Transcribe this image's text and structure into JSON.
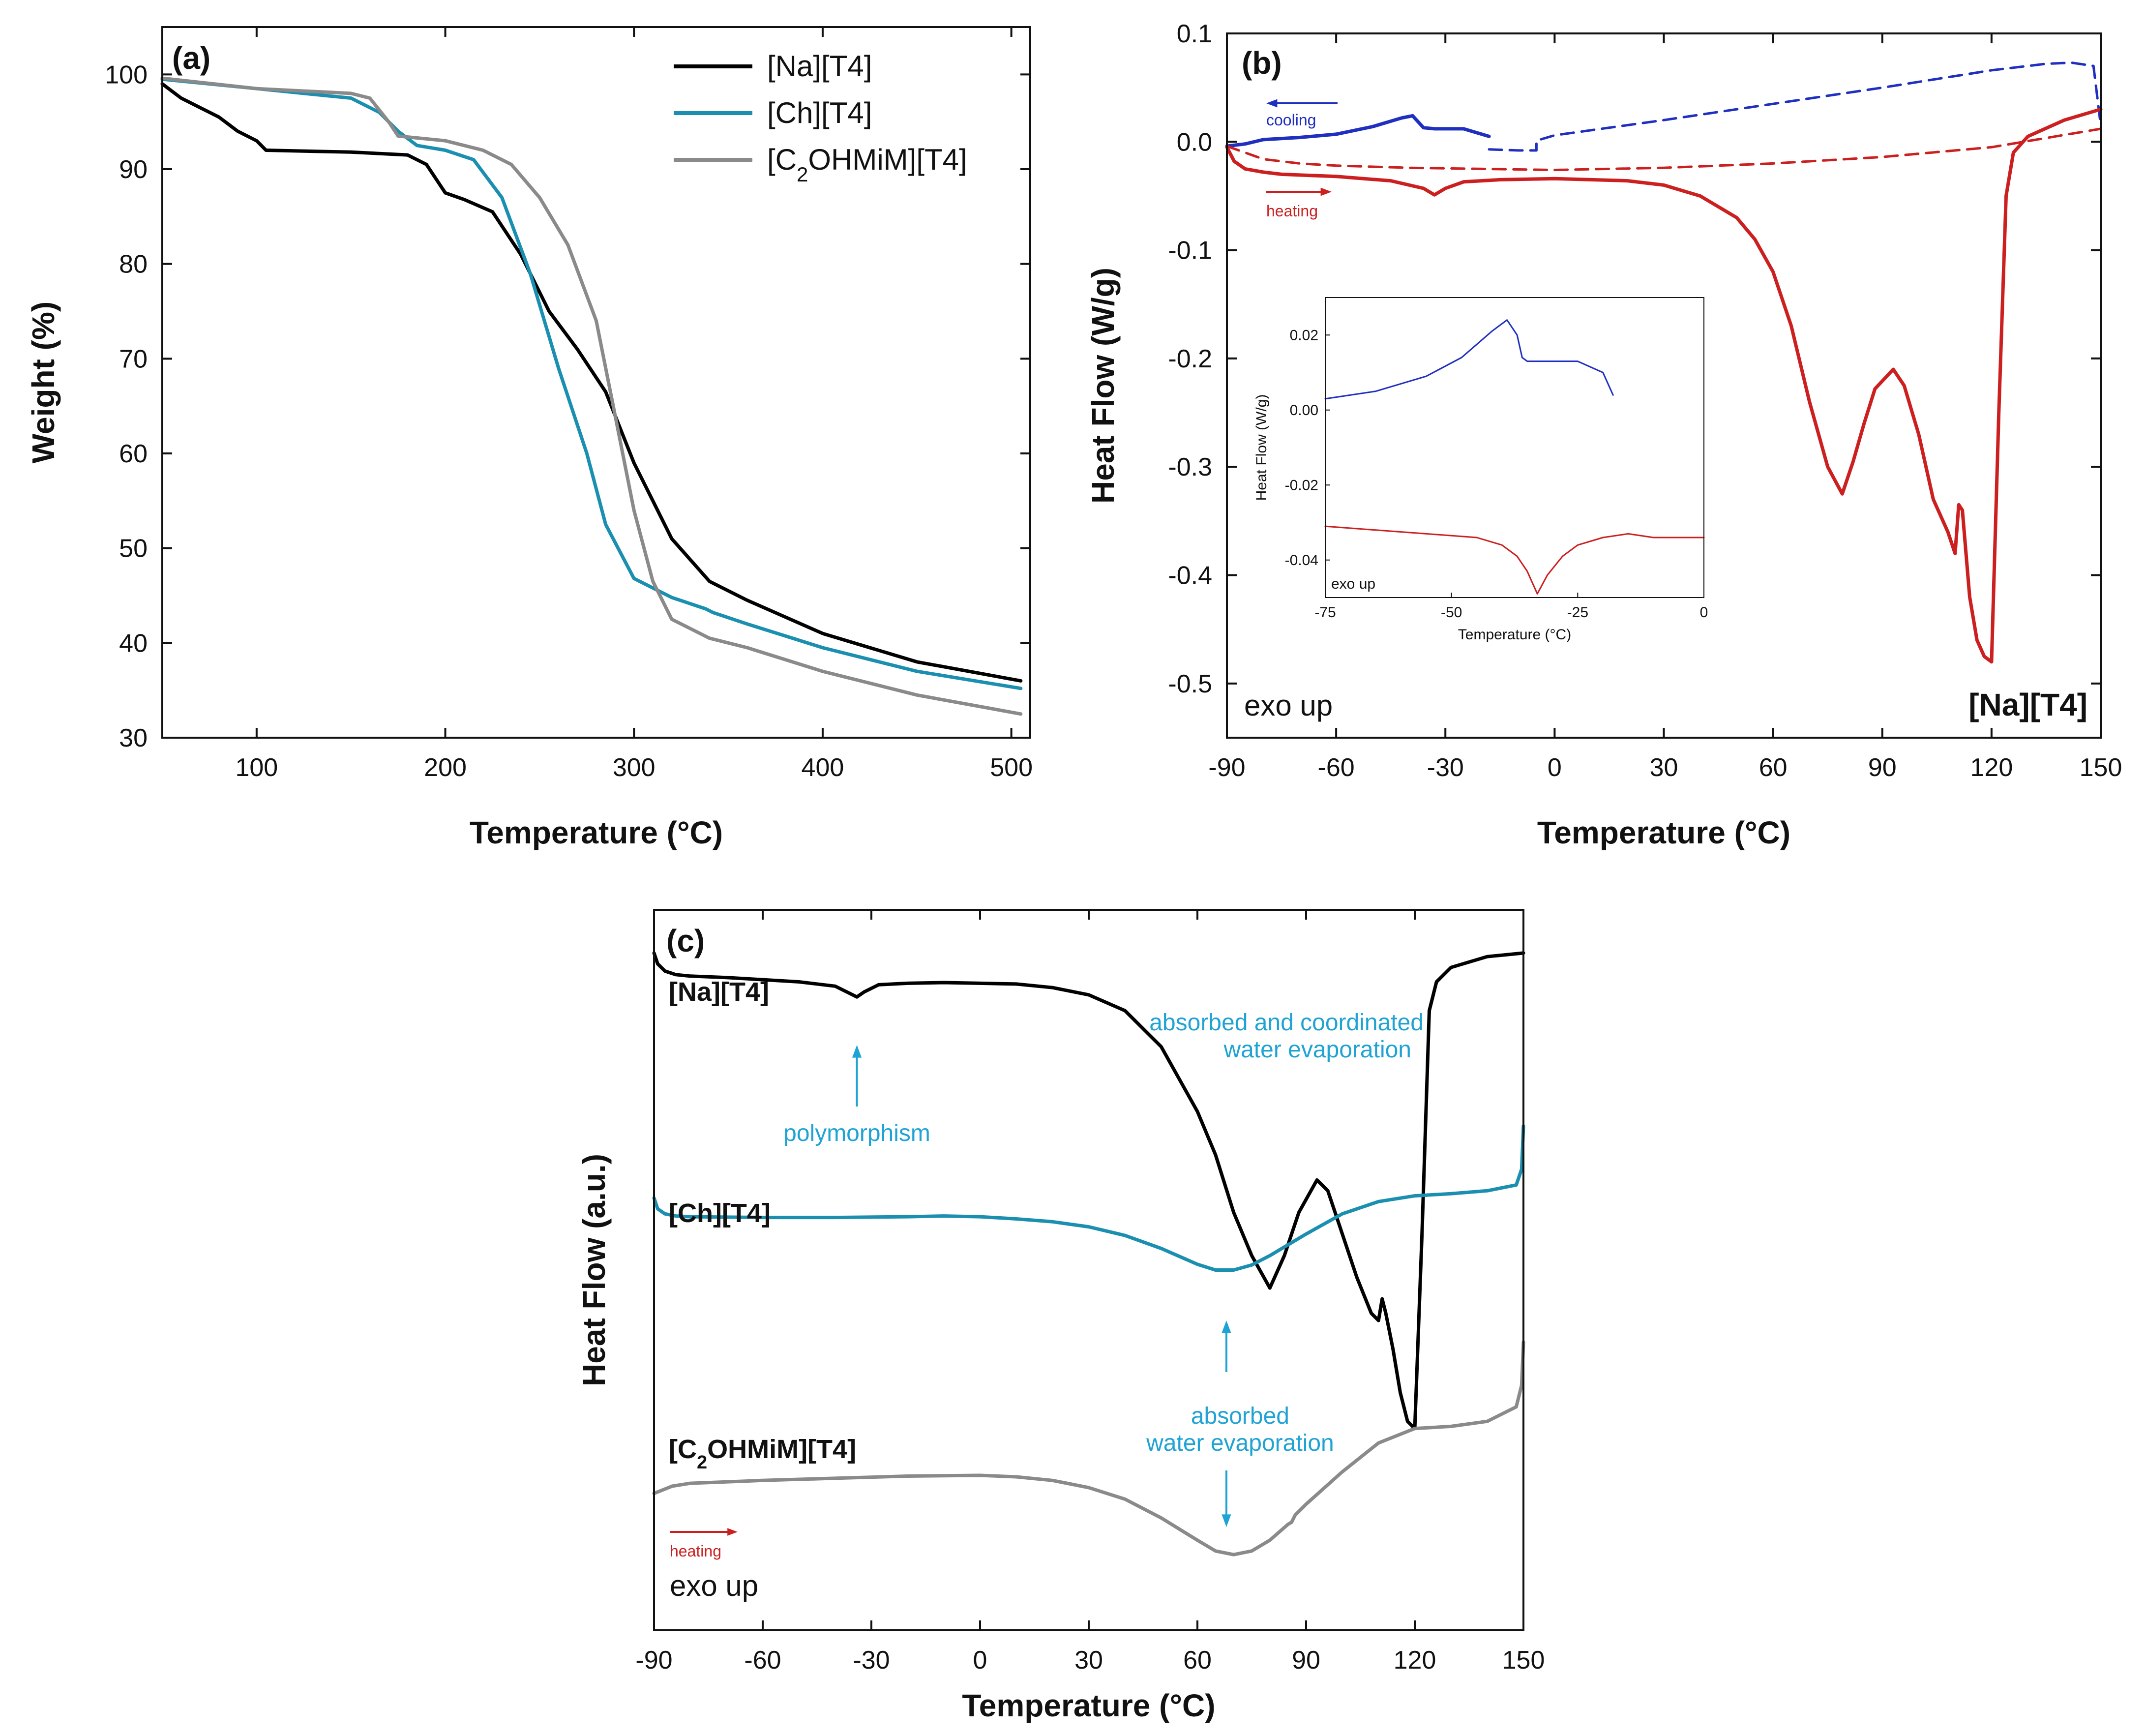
{
  "chart_data": [
    {
      "id": "a",
      "type": "line",
      "panel_label": "(a)",
      "xlabel": "Temperature (°C)",
      "ylabel": "Weight (%)",
      "xlim": [
        50,
        510
      ],
      "ylim": [
        30,
        105
      ],
      "xticks": [
        100,
        200,
        300,
        400,
        500
      ],
      "yticks": [
        30,
        40,
        50,
        60,
        70,
        80,
        90,
        100
      ],
      "legend_position": "top-right",
      "series": [
        {
          "name": "[Na][T4]",
          "legend": "[Na][T4]",
          "color": "#000000",
          "x": [
            50,
            60,
            70,
            80,
            90,
            100,
            105,
            150,
            180,
            190,
            200,
            210,
            225,
            240,
            255,
            270,
            285,
            300,
            320,
            340,
            360,
            400,
            450,
            505
          ],
          "y": [
            99,
            97.5,
            96.5,
            95.5,
            94,
            93,
            92,
            91.8,
            91.5,
            90.5,
            87.5,
            86.8,
            85.5,
            81,
            75,
            71,
            66.5,
            59,
            51,
            46.5,
            44.5,
            41,
            38,
            36
          ]
        },
        {
          "name": "[Ch][T4]",
          "legend": "[Ch][T4]",
          "color": "#1a8fb0",
          "x": [
            50,
            100,
            150,
            165,
            175,
            185,
            200,
            215,
            230,
            245,
            260,
            275,
            285,
            300,
            320,
            338,
            342,
            360,
            400,
            450,
            505
          ],
          "y": [
            99.5,
            98.5,
            97.5,
            96,
            94,
            92.5,
            92,
            91,
            87,
            79,
            69,
            60,
            52.5,
            46.8,
            44.8,
            43.6,
            43.2,
            42,
            39.5,
            37,
            35.2
          ]
        },
        {
          "name": "[C2OHMiM][T4]",
          "legend_main": "[C",
          "legend_sub": "2",
          "legend_rest": "OHMiM][T4]",
          "color": "#8a8a8a",
          "x": [
            50,
            100,
            150,
            160,
            170,
            175,
            200,
            220,
            235,
            250,
            265,
            280,
            290,
            300,
            310,
            320,
            340,
            360,
            400,
            450,
            505
          ],
          "y": [
            99.6,
            98.5,
            98,
            97.5,
            95,
            93.5,
            93,
            92,
            90.5,
            87,
            82,
            74,
            64,
            54,
            46.5,
            42.5,
            40.5,
            39.5,
            37,
            34.5,
            32.5
          ]
        }
      ]
    },
    {
      "id": "b",
      "type": "line",
      "panel_label": "(b)",
      "xlabel": "Temperature (°C)",
      "ylabel": "Heat Flow (W/g)",
      "xlim": [
        -90,
        150
      ],
      "ylim": [
        -0.55,
        0.1
      ],
      "xticks": [
        -90,
        -60,
        -30,
        0,
        30,
        60,
        90,
        120,
        150
      ],
      "yticks": [
        0.1,
        0.0,
        -0.1,
        -0.2,
        -0.3,
        -0.4,
        -0.5
      ],
      "annotations": {
        "cooling": "cooling",
        "heating": "heating",
        "exo_up": "exo up",
        "sample": "[Na][T4]"
      },
      "series": [
        {
          "id": "cooling_solid",
          "color": "#1f2fbf",
          "dash": false,
          "x": [
            -90,
            -85,
            -80,
            -70,
            -60,
            -50,
            -42,
            -39,
            -36,
            -33,
            -25,
            -18
          ],
          "y": [
            -0.004,
            -0.002,
            0.002,
            0.004,
            0.007,
            0.014,
            0.022,
            0.024,
            0.013,
            0.012,
            0.012,
            0.005
          ]
        },
        {
          "id": "cooling_dashed",
          "color": "#1f2fbf",
          "dash": true,
          "x": [
            -18,
            -10,
            -5,
            -5,
            0,
            30,
            60,
            90,
            120,
            135,
            142,
            148,
            150
          ],
          "y": [
            -0.007,
            -0.008,
            -0.008,
            0.001,
            0.006,
            0.02,
            0.035,
            0.05,
            0.066,
            0.072,
            0.073,
            0.07,
            0.015
          ]
        },
        {
          "id": "heating_dashed",
          "color": "#cc1f1f",
          "dash": true,
          "x": [
            -90,
            -85,
            -80,
            -70,
            -60,
            -40,
            -20,
            0,
            30,
            60,
            90,
            120,
            150
          ],
          "y": [
            -0.004,
            -0.01,
            -0.016,
            -0.02,
            -0.022,
            -0.024,
            -0.025,
            -0.026,
            -0.024,
            -0.02,
            -0.014,
            -0.005,
            0.012
          ]
        },
        {
          "id": "heating_solid",
          "color": "#cc1f1f",
          "dash": false,
          "x": [
            -90,
            -88,
            -85,
            -80,
            -75,
            -60,
            -45,
            -36,
            -33,
            -30,
            -25,
            -15,
            0,
            10,
            20,
            30,
            40,
            50,
            55,
            60,
            65,
            70,
            75,
            79,
            82,
            85,
            88,
            93,
            96,
            100,
            104,
            108,
            110,
            111,
            112,
            114,
            116,
            118,
            120,
            122,
            124,
            126,
            130,
            140,
            150
          ],
          "y": [
            -0.005,
            -0.018,
            -0.025,
            -0.028,
            -0.03,
            -0.032,
            -0.036,
            -0.043,
            -0.049,
            -0.043,
            -0.037,
            -0.035,
            -0.034,
            -0.035,
            -0.036,
            -0.04,
            -0.05,
            -0.07,
            -0.09,
            -0.12,
            -0.17,
            -0.24,
            -0.3,
            -0.325,
            -0.295,
            -0.26,
            -0.228,
            -0.21,
            -0.225,
            -0.27,
            -0.33,
            -0.36,
            -0.38,
            -0.335,
            -0.34,
            -0.42,
            -0.46,
            -0.475,
            -0.48,
            -0.25,
            -0.05,
            -0.01,
            0.005,
            0.02,
            0.03
          ]
        }
      ],
      "inset": {
        "xlabel": "Temperature (°C)",
        "ylabel": "Heat Flow (W/g)",
        "xlim": [
          -75,
          0
        ],
        "ylim": [
          -0.05,
          0.03
        ],
        "xticks": [
          -75,
          -50,
          -25,
          0
        ],
        "yticks": [
          0.02,
          0.0,
          -0.02,
          -0.04
        ],
        "annotation": "exo up",
        "series": [
          {
            "id": "inset_cooling",
            "color": "#1f2fbf",
            "x": [
              -75,
              -65,
              -55,
              -48,
              -42,
              -39,
              -37,
              -36,
              -35,
              -30,
              -25,
              -20,
              -18
            ],
            "y": [
              0.003,
              0.005,
              0.009,
              0.014,
              0.021,
              0.024,
              0.02,
              0.014,
              0.013,
              0.013,
              0.013,
              0.01,
              0.004
            ]
          },
          {
            "id": "inset_heating",
            "color": "#cc1f1f",
            "x": [
              -75,
              -65,
              -55,
              -45,
              -40,
              -37,
              -35,
              -34,
              -33,
              -31,
              -28,
              -25,
              -20,
              -15,
              -10,
              0
            ],
            "y": [
              -0.031,
              -0.032,
              -0.033,
              -0.034,
              -0.036,
              -0.039,
              -0.043,
              -0.046,
              -0.049,
              -0.044,
              -0.039,
              -0.036,
              -0.034,
              -0.033,
              -0.034,
              -0.034
            ]
          }
        ]
      }
    },
    {
      "id": "c",
      "type": "line",
      "panel_label": "(c)",
      "xlabel": "Temperature (°C)",
      "ylabel": "Heat Flow (a.u.)",
      "xlim": [
        -90,
        150
      ],
      "ylim": [
        0,
        1
      ],
      "xticks": [
        -90,
        -60,
        -30,
        0,
        30,
        60,
        90,
        120,
        150
      ],
      "annotations": {
        "polymorphism": "polymorphism",
        "absorbed_coordinated_line1": "absorbed and coordinated",
        "absorbed_coordinated_line2": "water evaporation",
        "absorbed_line1": "absorbed",
        "absorbed_line2": "water evaporation",
        "heating": "heating",
        "exo_up": "exo up",
        "highlight_color": "#1fa3d4"
      },
      "series": [
        {
          "name": "[Na][T4]",
          "label": "[Na][T4]",
          "color": "#000000",
          "x": [
            -90,
            -89,
            -87,
            -84,
            -80,
            -70,
            -50,
            -40,
            -36,
            -34,
            -32,
            -28,
            -20,
            -10,
            0,
            10,
            20,
            30,
            40,
            50,
            60,
            65,
            70,
            75,
            80,
            84,
            88,
            93,
            96,
            100,
            104,
            108,
            110,
            111,
            112,
            114,
            116,
            118,
            120,
            122,
            124,
            126,
            130,
            140,
            150
          ],
          "y": [
            0.94,
            0.925,
            0.915,
            0.91,
            0.908,
            0.906,
            0.9,
            0.894,
            0.884,
            0.879,
            0.886,
            0.896,
            0.898,
            0.899,
            0.898,
            0.897,
            0.892,
            0.882,
            0.86,
            0.81,
            0.72,
            0.66,
            0.58,
            0.52,
            0.475,
            0.52,
            0.58,
            0.625,
            0.61,
            0.55,
            0.49,
            0.44,
            0.43,
            0.46,
            0.44,
            0.39,
            0.33,
            0.29,
            0.28,
            0.55,
            0.86,
            0.9,
            0.92,
            0.935,
            0.94
          ]
        },
        {
          "name": "[Ch][T4]",
          "label": "[Ch][T4]",
          "color": "#1a8fb0",
          "x": [
            -90,
            -89,
            -87,
            -84,
            -80,
            -60,
            -40,
            -20,
            -10,
            0,
            10,
            20,
            30,
            40,
            50,
            60,
            65,
            70,
            75,
            80,
            90,
            100,
            110,
            120,
            130,
            140,
            148,
            149.5,
            150
          ],
          "y": [
            0.6,
            0.585,
            0.578,
            0.575,
            0.574,
            0.573,
            0.573,
            0.574,
            0.575,
            0.574,
            0.571,
            0.567,
            0.56,
            0.548,
            0.53,
            0.508,
            0.5,
            0.5,
            0.507,
            0.52,
            0.55,
            0.578,
            0.595,
            0.603,
            0.606,
            0.61,
            0.618,
            0.64,
            0.7
          ]
        },
        {
          "name": "[C2OHMiM][T4]",
          "label_main": "[C",
          "label_sub": "2",
          "label_rest": "OHMiM][T4]",
          "color": "#8a8a8a",
          "x": [
            -90,
            -85,
            -80,
            -60,
            -40,
            -20,
            0,
            10,
            20,
            30,
            40,
            50,
            60,
            65,
            70,
            75,
            80,
            85,
            86,
            87,
            90,
            100,
            110,
            120,
            130,
            140,
            148,
            149.5,
            150
          ],
          "y": [
            0.19,
            0.2,
            0.204,
            0.208,
            0.211,
            0.214,
            0.215,
            0.213,
            0.208,
            0.198,
            0.182,
            0.156,
            0.125,
            0.11,
            0.105,
            0.11,
            0.125,
            0.147,
            0.15,
            0.16,
            0.175,
            0.22,
            0.26,
            0.28,
            0.283,
            0.29,
            0.31,
            0.34,
            0.4
          ]
        }
      ]
    }
  ]
}
